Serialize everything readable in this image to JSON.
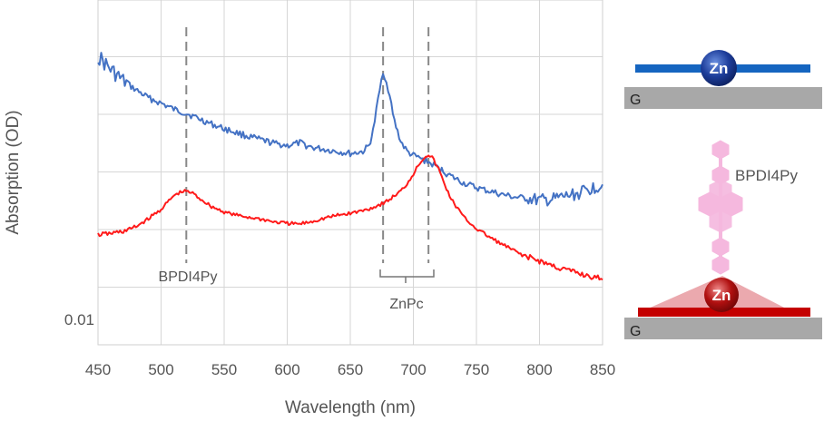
{
  "chart_data": {
    "type": "line",
    "xlabel": "Wavelength (nm)",
    "ylabel": "Absorption (OD)",
    "xlim": [
      450,
      850
    ],
    "x_ticks": [
      450,
      500,
      550,
      600,
      650,
      700,
      750,
      800,
      850
    ],
    "grid": "vertical and horizontal",
    "scale_bar_label": "0.01",
    "vlines": [
      520,
      676,
      712
    ],
    "annotations": {
      "peak_label": "BPDI4Py",
      "bracket_label": "ZnPc"
    },
    "series": [
      {
        "color": "#4472c4",
        "x": [
          450,
          460,
          470,
          480,
          490,
          500,
          510,
          520,
          530,
          540,
          550,
          560,
          570,
          580,
          590,
          600,
          605,
          610,
          615,
          620,
          630,
          640,
          650,
          660,
          665,
          668,
          672,
          676,
          680,
          685,
          690,
          695,
          700,
          705,
          710,
          715,
          720,
          730,
          740,
          750,
          760,
          770,
          780,
          790,
          800,
          810,
          820,
          830,
          840,
          850
        ],
        "y": [
          0.0745,
          0.0725,
          0.0708,
          0.0695,
          0.0683,
          0.0675,
          0.0666,
          0.066,
          0.0652,
          0.0644,
          0.0637,
          0.0631,
          0.0625,
          0.062,
          0.0615,
          0.0612,
          0.0614,
          0.0616,
          0.0612,
          0.0609,
          0.0606,
          0.0603,
          0.06,
          0.0603,
          0.0612,
          0.0633,
          0.068,
          0.0723,
          0.0697,
          0.0648,
          0.0618,
          0.0603,
          0.0597,
          0.0593,
          0.0589,
          0.0584,
          0.0578,
          0.0566,
          0.0556,
          0.0549,
          0.0544,
          0.0539,
          0.0535,
          0.0533,
          0.053,
          0.0531,
          0.0536,
          0.054,
          0.0547,
          0.0554
        ]
      },
      {
        "color": "#ff1a1a",
        "x": [
          450,
          460,
          470,
          480,
          490,
          500,
          505,
          510,
          515,
          520,
          525,
          530,
          540,
          550,
          560,
          570,
          580,
          590,
          600,
          610,
          620,
          630,
          640,
          650,
          660,
          670,
          680,
          690,
          695,
          700,
          705,
          710,
          712,
          715,
          720,
          725,
          730,
          740,
          750,
          760,
          770,
          780,
          790,
          800,
          810,
          820,
          830,
          840,
          850
        ],
        "y": [
          0.0479,
          0.0481,
          0.0484,
          0.0491,
          0.0503,
          0.0517,
          0.0527,
          0.0537,
          0.0542,
          0.0544,
          0.0541,
          0.0534,
          0.0521,
          0.0513,
          0.0508,
          0.0505,
          0.0502,
          0.0498,
          0.0496,
          0.0495,
          0.0499,
          0.0504,
          0.0508,
          0.0511,
          0.0515,
          0.0521,
          0.053,
          0.0544,
          0.0555,
          0.057,
          0.0586,
          0.0597,
          0.0598,
          0.0594,
          0.0577,
          0.0553,
          0.0532,
          0.0505,
          0.0488,
          0.0476,
          0.0465,
          0.0455,
          0.0446,
          0.044,
          0.0433,
          0.0427,
          0.0422,
          0.0417,
          0.0412
        ]
      }
    ]
  },
  "schematic": {
    "top": {
      "metal_label": "Zn",
      "substrate_label": "G",
      "colors": {
        "molecule": "#1565c0",
        "sphere": "#1a3a8a",
        "substrate": "#a8a8a8"
      }
    },
    "bottom": {
      "metal_label": "Zn",
      "substrate_label": "G",
      "ligand_label": "BPDI4Py",
      "colors": {
        "molecule": "#c40000",
        "sphere": "#b01010",
        "ligand": "#f5b8de",
        "substrate": "#a8a8a8"
      }
    }
  }
}
